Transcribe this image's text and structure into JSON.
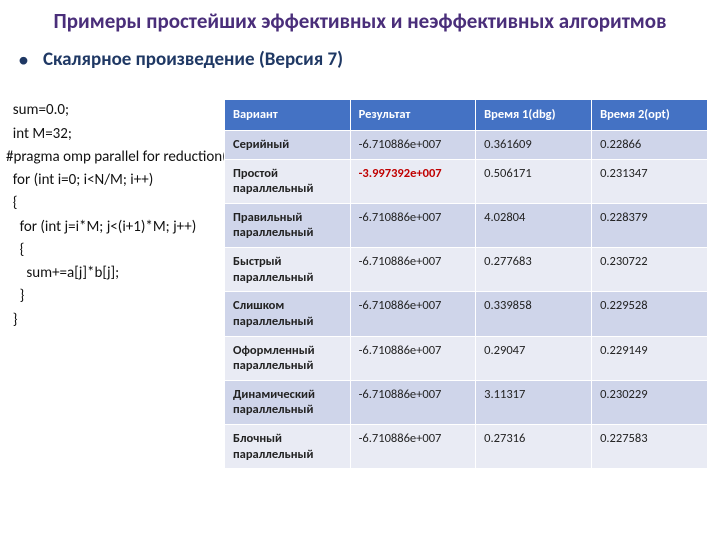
{
  "title": "Примеры простейших эффективных и неэффективных алгоритмов",
  "subtitle": "Скалярное произведение (Версия 7)",
  "code_lines": [
    "  sum=0.0;",
    "  int M=32;",
    "#pragma omp parallel for reduction(+:sum)",
    "  for (int i=0; i<N/M; i++)",
    "  {",
    "    for (int j=i*M; j<(i+1)*M; j++)",
    "    {",
    "      sum+=a[j]*b[j];",
    "    }",
    "  }"
  ],
  "table": {
    "headers": [
      "Вариант",
      "Результат",
      "Время 1(dbg)",
      "Время 2(opt)"
    ],
    "header_bg": "#4472c4",
    "row_odd_bg": "#cfd5ea",
    "row_even_bg": "#e9ebf4",
    "highlight_color": "#c00000",
    "col_widths": [
      "26%",
      "26%",
      "24%",
      "24%"
    ],
    "rows": [
      {
        "variant": "Серийный",
        "result": "-6.710886e+007",
        "t1": "0.361609",
        "t2": "0.22866",
        "highlight": false
      },
      {
        "variant": "Простой параллельный",
        "result": "-3.997392e+007",
        "t1": "0.506171",
        "t2": "0.231347",
        "highlight": true
      },
      {
        "variant": "Правильный параллельный",
        "result": "-6.710886e+007",
        "t1": "4.02804",
        "t2": "0.228379",
        "highlight": false
      },
      {
        "variant": "Быстрый параллельный",
        "result": "-6.710886e+007",
        "t1": "0.277683",
        "t2": "0.230722",
        "highlight": false
      },
      {
        "variant": "Слишком параллельный",
        "result": "-6.710886e+007",
        "t1": "0.339858",
        "t2": " 0.229528",
        "highlight": false
      },
      {
        "variant": "Оформленный параллельный",
        "result": "-6.710886e+007",
        "t1": "0.29047",
        "t2": "0.229149",
        "highlight": false
      },
      {
        "variant": "Динамический параллельный",
        "result": "-6.710886e+007",
        "t1": "3.11317",
        "t2": "0.230229",
        "highlight": false
      },
      {
        "variant": "Блочный параллельный",
        "result": "-6.710886e+007",
        "t1": "0.27316",
        "t2": "0.227583",
        "highlight": false
      }
    ]
  }
}
